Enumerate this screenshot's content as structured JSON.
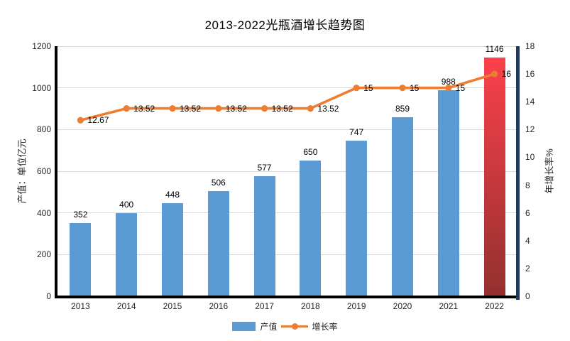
{
  "chart_data": {
    "type": "bar-line-combo",
    "title": "2013-2022光瓶酒增长趋势图",
    "categories": [
      "2013",
      "2014",
      "2015",
      "2016",
      "2017",
      "2018",
      "2019",
      "2020",
      "2021",
      "2022"
    ],
    "series": [
      {
        "name": "产值",
        "type": "bar",
        "axis": "left",
        "values": [
          352,
          400,
          448,
          506,
          577,
          650,
          747,
          859,
          988,
          1146
        ],
        "labels": [
          "352",
          "400",
          "448",
          "506",
          "577",
          "650",
          "747",
          "859",
          "988",
          "1146"
        ],
        "color": "#5B9BD5",
        "highlight": {
          "index": 9,
          "gradient_top": "#FB414B",
          "gradient_bottom": "#93302F"
        }
      },
      {
        "name": "增长率",
        "type": "line",
        "axis": "right",
        "values": [
          12.67,
          13.52,
          13.52,
          13.52,
          13.52,
          13.52,
          15,
          15,
          15,
          16
        ],
        "labels": [
          "12.67",
          "13.52",
          "13.52",
          "13.52",
          "13.52",
          "13.52",
          "15",
          "15",
          "15",
          "16"
        ],
        "color": "#ED7D31"
      }
    ],
    "y_left": {
      "label": "产值：单位亿元",
      "min": 0,
      "max": 1200,
      "ticks": [
        0,
        200,
        400,
        600,
        800,
        1000,
        1200
      ]
    },
    "y_right": {
      "label": "年增长率%",
      "min": 0,
      "max": 18,
      "ticks": [
        0,
        2,
        4,
        6,
        8,
        10,
        12,
        14,
        16,
        18
      ]
    },
    "grid": true,
    "legend": {
      "position": "bottom-center",
      "items": [
        "产值",
        "增长率"
      ]
    },
    "colors": {
      "bar": "#5B9BD5",
      "line": "#ED7D31",
      "gridline": "#D9D9D9",
      "axis_left_bottom": "#000000",
      "axis_right": "#1C3A66",
      "text": "#262626"
    }
  }
}
